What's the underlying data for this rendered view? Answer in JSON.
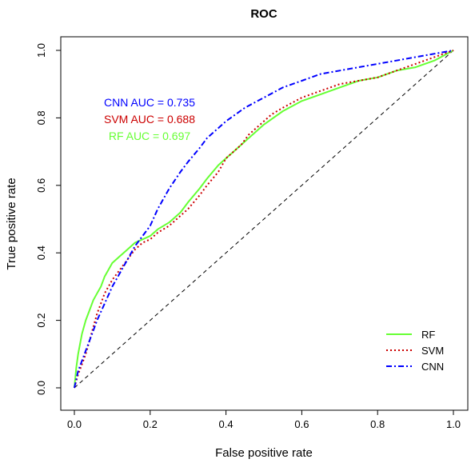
{
  "chart_data": {
    "type": "line",
    "title": "ROC",
    "xlabel": "False positive rate",
    "ylabel": "True positive rate",
    "xlim": [
      0,
      1
    ],
    "ylim": [
      0,
      1
    ],
    "x_ticks": [
      "0.0",
      "0.2",
      "0.4",
      "0.6",
      "0.8",
      "1.0"
    ],
    "y_ticks": [
      "0.0",
      "0.2",
      "0.4",
      "0.6",
      "0.8",
      "1.0"
    ],
    "grid": false,
    "legend_position": "bottom-right",
    "reference_line": {
      "x": [
        0,
        1
      ],
      "y": [
        0,
        1
      ],
      "style": "dashed"
    },
    "annotations": [
      {
        "text": "CNN AUC = 0.735",
        "color": "#0000ff"
      },
      {
        "text": "SVM AUC = 0.688",
        "color": "#cc0000"
      },
      {
        "text": "RF AUC = 0.697",
        "color": "#66ff33"
      }
    ],
    "series": [
      {
        "name": "RF",
        "color": "#66ff33",
        "style": "solid",
        "x": [
          0,
          0.005,
          0.01,
          0.015,
          0.02,
          0.03,
          0.04,
          0.05,
          0.06,
          0.07,
          0.08,
          0.09,
          0.1,
          0.12,
          0.14,
          0.16,
          0.18,
          0.2,
          0.22,
          0.25,
          0.28,
          0.3,
          0.33,
          0.35,
          0.38,
          0.4,
          0.42,
          0.45,
          0.48,
          0.5,
          0.55,
          0.6,
          0.65,
          0.7,
          0.75,
          0.8,
          0.85,
          0.9,
          0.95,
          1.0
        ],
        "y": [
          0,
          0.06,
          0.1,
          0.13,
          0.16,
          0.2,
          0.23,
          0.26,
          0.28,
          0.3,
          0.33,
          0.35,
          0.37,
          0.39,
          0.41,
          0.43,
          0.44,
          0.45,
          0.47,
          0.49,
          0.52,
          0.55,
          0.59,
          0.62,
          0.66,
          0.68,
          0.7,
          0.73,
          0.76,
          0.78,
          0.82,
          0.85,
          0.87,
          0.89,
          0.91,
          0.92,
          0.94,
          0.95,
          0.97,
          1.0
        ]
      },
      {
        "name": "SVM",
        "color": "#cc0000",
        "style": "dotted",
        "x": [
          0,
          0.01,
          0.02,
          0.03,
          0.04,
          0.05,
          0.06,
          0.07,
          0.08,
          0.1,
          0.12,
          0.14,
          0.16,
          0.18,
          0.2,
          0.22,
          0.25,
          0.28,
          0.3,
          0.33,
          0.35,
          0.38,
          0.4,
          0.42,
          0.44,
          0.46,
          0.48,
          0.5,
          0.52,
          0.55,
          0.6,
          0.65,
          0.7,
          0.75,
          0.8,
          0.85,
          0.9,
          0.95,
          1.0
        ],
        "y": [
          0,
          0.04,
          0.07,
          0.1,
          0.14,
          0.18,
          0.22,
          0.25,
          0.28,
          0.32,
          0.35,
          0.38,
          0.41,
          0.43,
          0.44,
          0.46,
          0.48,
          0.51,
          0.53,
          0.57,
          0.6,
          0.64,
          0.68,
          0.7,
          0.72,
          0.75,
          0.77,
          0.79,
          0.81,
          0.83,
          0.86,
          0.88,
          0.9,
          0.91,
          0.92,
          0.94,
          0.96,
          0.98,
          1.0
        ]
      },
      {
        "name": "CNN",
        "color": "#0000ff",
        "style": "dashdot",
        "x": [
          0,
          0.01,
          0.02,
          0.03,
          0.04,
          0.05,
          0.06,
          0.08,
          0.1,
          0.12,
          0.14,
          0.16,
          0.18,
          0.2,
          0.22,
          0.25,
          0.28,
          0.3,
          0.33,
          0.35,
          0.38,
          0.4,
          0.45,
          0.5,
          0.55,
          0.6,
          0.65,
          0.7,
          0.75,
          0.8,
          0.85,
          0.9,
          0.95,
          1.0
        ],
        "y": [
          0,
          0.05,
          0.08,
          0.11,
          0.14,
          0.17,
          0.2,
          0.25,
          0.3,
          0.34,
          0.38,
          0.42,
          0.45,
          0.48,
          0.53,
          0.59,
          0.64,
          0.67,
          0.71,
          0.74,
          0.77,
          0.79,
          0.83,
          0.86,
          0.89,
          0.91,
          0.93,
          0.94,
          0.95,
          0.96,
          0.97,
          0.98,
          0.99,
          1.0
        ]
      }
    ]
  }
}
